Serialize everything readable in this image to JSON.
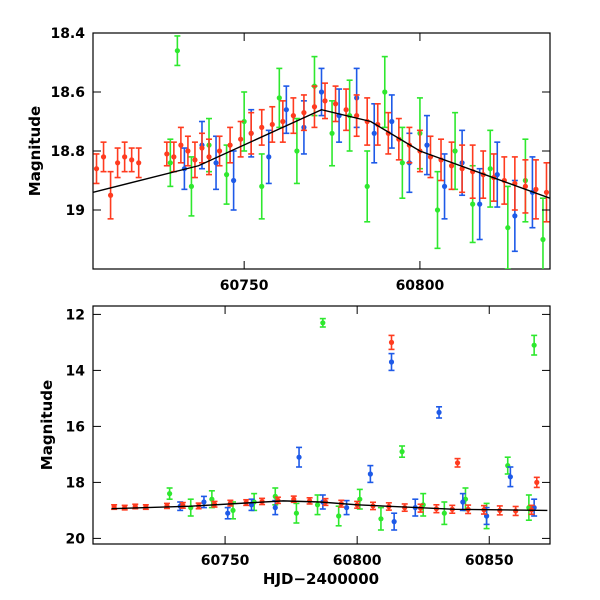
{
  "chart_data": [
    {
      "type": "scatter",
      "panel": "top",
      "ylabel": "Magnitude",
      "xlabel": "",
      "xlim": [
        60707,
        60837
      ],
      "ylim": [
        19.2,
        18.4
      ],
      "y_inverted": true,
      "xticks": [
        60750,
        60800
      ],
      "xtick_labels": [
        "60750",
        "60800"
      ],
      "yticks": [
        18.4,
        18.6,
        18.8,
        19.0
      ],
      "ytick_labels": [
        "18.4",
        "18.6",
        "18.8",
        "19"
      ],
      "error_bars": true,
      "series": [
        {
          "color": "#ff3b1f",
          "x": [
            60708,
            60710,
            60712,
            60714,
            60716,
            60718,
            60720,
            60728,
            60730,
            60732,
            60734,
            60736,
            60738,
            60740,
            60743,
            60746,
            60749,
            60752,
            60755,
            60758,
            60761,
            60764,
            60767,
            60770,
            60773,
            60776,
            60779,
            60782,
            60785,
            60788,
            60791,
            60794,
            60797,
            60800,
            60803,
            60806,
            60809,
            60812,
            60815,
            60818,
            60821,
            60824,
            60827,
            60830,
            60833,
            60836
          ],
          "y": [
            18.86,
            18.82,
            18.95,
            18.84,
            18.82,
            18.83,
            18.84,
            18.81,
            18.82,
            18.78,
            18.8,
            18.83,
            18.79,
            18.82,
            18.8,
            18.78,
            18.76,
            18.74,
            18.72,
            18.71,
            18.7,
            18.68,
            18.67,
            18.65,
            18.63,
            18.64,
            18.66,
            18.68,
            18.7,
            18.71,
            18.74,
            18.76,
            18.78,
            18.8,
            18.82,
            18.83,
            18.85,
            18.86,
            18.87,
            18.88,
            18.89,
            18.9,
            18.91,
            18.92,
            18.93,
            18.94
          ],
          "err": [
            0.05,
            0.05,
            0.08,
            0.05,
            0.05,
            0.04,
            0.05,
            0.04,
            0.05,
            0.06,
            0.05,
            0.06,
            0.05,
            0.06,
            0.05,
            0.06,
            0.06,
            0.07,
            0.06,
            0.06,
            0.07,
            0.06,
            0.06,
            0.07,
            0.06,
            0.06,
            0.07,
            0.07,
            0.08,
            0.07,
            0.07,
            0.07,
            0.06,
            0.07,
            0.07,
            0.07,
            0.08,
            0.08,
            0.09,
            0.08,
            0.08,
            0.08,
            0.09,
            0.09,
            0.1,
            0.1
          ]
        },
        {
          "color": "#1e5ae8",
          "x": [
            60733,
            60738,
            60742,
            60747,
            60752,
            60757,
            60762,
            60767,
            60772,
            60777,
            60782,
            60787,
            60792,
            60797,
            60802,
            60807,
            60812,
            60817,
            60822,
            60827,
            60832
          ],
          "y": [
            18.86,
            18.78,
            18.84,
            18.9,
            18.74,
            18.82,
            18.66,
            18.72,
            18.6,
            18.68,
            18.62,
            18.74,
            18.7,
            18.84,
            18.78,
            18.92,
            18.84,
            18.98,
            18.88,
            19.02,
            18.94
          ],
          "err": [
            0.07,
            0.08,
            0.09,
            0.1,
            0.08,
            0.09,
            0.08,
            0.09,
            0.08,
            0.09,
            0.1,
            0.1,
            0.09,
            0.1,
            0.1,
            0.11,
            0.11,
            0.12,
            0.11,
            0.12,
            0.12
          ]
        },
        {
          "color": "#2ee82e",
          "x": [
            60729,
            60731,
            60735,
            60740,
            60745,
            60750,
            60755,
            60760,
            60765,
            60770,
            60775,
            60780,
            60785,
            60790,
            60795,
            60800,
            60805,
            60810,
            60815,
            60820,
            60825,
            60830,
            60835
          ],
          "y": [
            18.84,
            18.46,
            18.92,
            18.78,
            18.88,
            18.7,
            18.92,
            18.62,
            18.8,
            18.58,
            18.74,
            18.68,
            18.92,
            18.6,
            18.84,
            18.74,
            19.0,
            18.8,
            18.98,
            18.86,
            19.06,
            18.9,
            19.1
          ],
          "err": [
            0.08,
            0.05,
            0.1,
            0.09,
            0.1,
            0.1,
            0.11,
            0.1,
            0.11,
            0.1,
            0.11,
            0.12,
            0.12,
            0.12,
            0.12,
            0.12,
            0.13,
            0.13,
            0.13,
            0.13,
            0.14,
            0.14,
            0.14
          ]
        }
      ],
      "model_line": {
        "color": "#000000",
        "x": [
          60707,
          60737,
          60772,
          60786,
          60800,
          60837
        ],
        "y": [
          18.94,
          18.85,
          18.66,
          18.7,
          18.8,
          18.96
        ]
      }
    },
    {
      "type": "scatter",
      "panel": "bottom",
      "ylabel": "Magnitude",
      "xlabel": "HJD−2400000",
      "xlim": [
        60700,
        60873
      ],
      "ylim": [
        20.2,
        11.7
      ],
      "y_inverted": true,
      "xticks": [
        60750,
        60800,
        60850
      ],
      "xtick_labels": [
        "60750",
        "60800",
        "60850"
      ],
      "yticks": [
        12,
        14,
        16,
        18,
        20
      ],
      "ytick_labels": [
        "12",
        "14",
        "16",
        "18",
        "20"
      ],
      "error_bars": true,
      "series": [
        {
          "color": "#ff3b1f",
          "x": [
            60708,
            60712,
            60716,
            60720,
            60728,
            60734,
            60740,
            60746,
            60752,
            60758,
            60764,
            60770,
            60776,
            60782,
            60788,
            60794,
            60800,
            60806,
            60812,
            60813,
            60818,
            60824,
            60830,
            60836,
            60838,
            60842,
            60848,
            60854,
            60860,
            60866,
            60868
          ],
          "y": [
            18.88,
            18.9,
            18.86,
            18.88,
            18.84,
            18.82,
            18.84,
            18.78,
            18.74,
            18.72,
            18.68,
            18.64,
            18.6,
            18.66,
            18.7,
            18.76,
            18.8,
            18.84,
            18.86,
            13.0,
            18.9,
            18.92,
            18.94,
            18.96,
            17.3,
            18.96,
            18.98,
            19.0,
            19.02,
            18.98,
            18.0
          ],
          "err": [
            0.08,
            0.08,
            0.08,
            0.08,
            0.09,
            0.1,
            0.1,
            0.1,
            0.1,
            0.1,
            0.11,
            0.11,
            0.11,
            0.11,
            0.12,
            0.12,
            0.12,
            0.13,
            0.13,
            0.25,
            0.13,
            0.14,
            0.14,
            0.14,
            0.15,
            0.15,
            0.15,
            0.16,
            0.16,
            0.16,
            0.18
          ]
        },
        {
          "color": "#1e5ae8",
          "x": [
            60733,
            60742,
            60751,
            60760,
            60769,
            60778,
            60787,
            60796,
            60805,
            60813,
            60814,
            60822,
            60831,
            60840,
            60849,
            60858,
            60867
          ],
          "y": [
            18.85,
            18.7,
            19.1,
            18.8,
            18.9,
            17.1,
            18.7,
            18.9,
            17.7,
            13.7,
            19.4,
            18.9,
            15.5,
            18.7,
            19.2,
            17.8,
            18.9
          ],
          "err": [
            0.15,
            0.2,
            0.2,
            0.2,
            0.25,
            0.35,
            0.25,
            0.25,
            0.3,
            0.3,
            0.3,
            0.3,
            0.2,
            0.3,
            0.3,
            0.35,
            0.3
          ],
          "isolated": [
            true,
            false,
            false,
            false,
            false,
            true,
            false,
            false,
            true,
            true,
            false,
            false,
            true,
            false,
            false,
            true,
            false
          ]
        },
        {
          "color": "#2ee82e",
          "x": [
            60729,
            60737,
            60745,
            60753,
            60761,
            60769,
            60777,
            60785,
            60787,
            60793,
            60801,
            60809,
            60817,
            60825,
            60833,
            60841,
            60849,
            60857,
            60865,
            60867
          ],
          "y": [
            18.4,
            18.9,
            18.6,
            19.0,
            18.7,
            18.5,
            19.1,
            18.8,
            12.3,
            19.2,
            18.6,
            19.3,
            16.9,
            18.8,
            19.1,
            18.6,
            19.2,
            17.4,
            18.9,
            13.1
          ],
          "err": [
            0.2,
            0.3,
            0.3,
            0.3,
            0.3,
            0.3,
            0.35,
            0.35,
            0.15,
            0.35,
            0.35,
            0.4,
            0.2,
            0.4,
            0.4,
            0.4,
            0.45,
            0.3,
            0.45,
            0.35
          ],
          "isolated": [
            false,
            false,
            false,
            false,
            false,
            false,
            false,
            false,
            true,
            false,
            false,
            false,
            true,
            false,
            false,
            false,
            false,
            true,
            false,
            true
          ]
        }
      ],
      "model_line": {
        "color": "#000000",
        "x": [
          60707,
          60737,
          60772,
          60786,
          60800,
          60837,
          60872
        ],
        "y": [
          18.94,
          18.85,
          18.66,
          18.7,
          18.8,
          18.96,
          19.0
        ]
      }
    }
  ]
}
